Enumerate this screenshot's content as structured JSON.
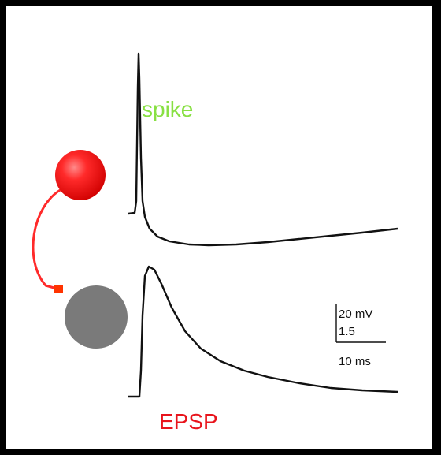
{
  "labels": {
    "spike": "spike",
    "epsp": "EPSP"
  },
  "scale_bar": {
    "voltage": "20 mV",
    "ratio": "1.5",
    "time": "10 ms"
  }
}
